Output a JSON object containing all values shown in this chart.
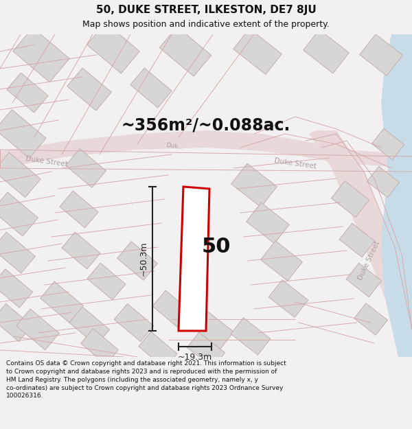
{
  "title_line1": "50, DUKE STREET, ILKESTON, DE7 8JU",
  "title_line2": "Map shows position and indicative extent of the property.",
  "area_text": "~356m²/~0.088ac.",
  "label_number": "50",
  "dim_height": "~50.3m",
  "dim_width": "~19.3m",
  "footer_text": "Contains OS data © Crown copyright and database right 2021. This information is subject to Crown copyright and database rights 2023 and is reproduced with the permission of HM Land Registry. The polygons (including the associated geometry, namely x, y co-ordinates) are subject to Crown copyright and database rights 2023 Ordnance Survey 100026316.",
  "bg_color": "#f2f0f0",
  "map_bg": "#f2f0f0",
  "road_fill": "#e8d8d8",
  "building_fill": "#d8d5d5",
  "building_edge": "#c0a8a8",
  "road_line_color": "#d4a8a8",
  "property_color": "#cc0000",
  "property_fill": "#ffffff",
  "street_label_color": "#b0a0a0",
  "dim_color": "#222222",
  "water_color": "#c8dce8",
  "title_fontsize": 11,
  "subtitle_fontsize": 9,
  "area_fontsize": 17,
  "label_fontsize": 22,
  "dim_fontsize": 9,
  "footer_fontsize": 6.5,
  "street_fontsize": 7.5
}
